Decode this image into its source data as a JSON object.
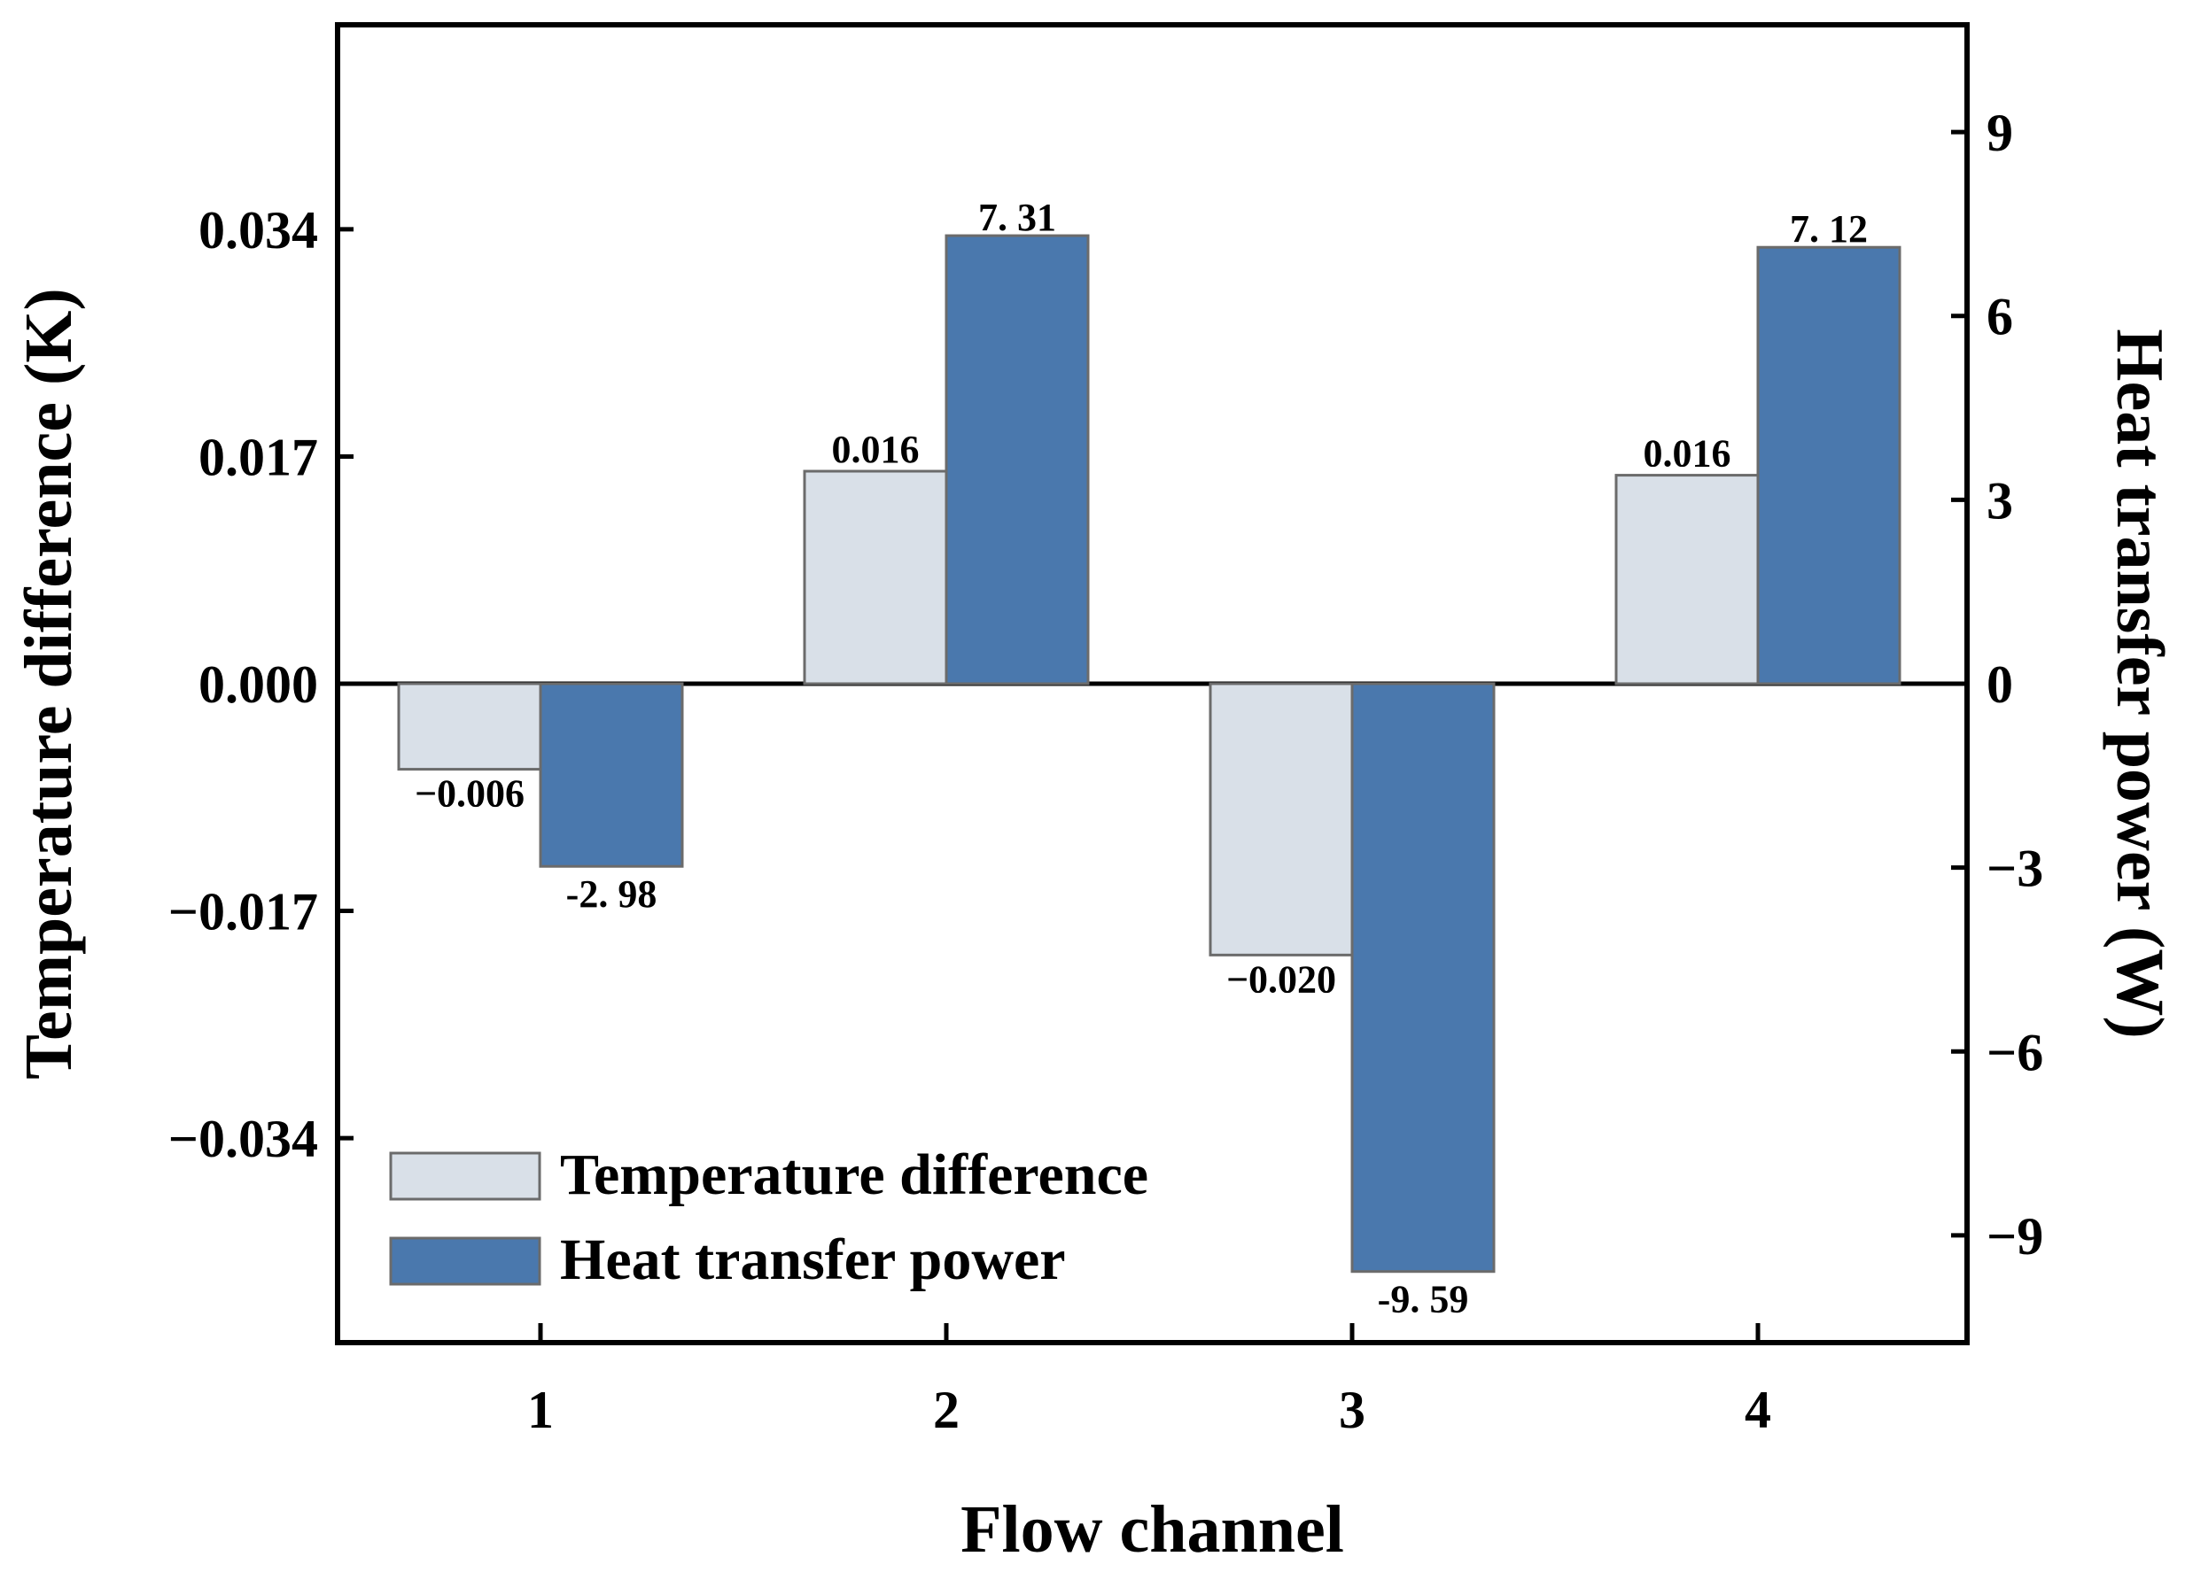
{
  "colors": {
    "temperature": "#d9e0e8",
    "temperature_stroke": "#6b6b6b",
    "power": "#4a78ad",
    "power_stroke": "#6b6b6b",
    "axis": "#000000"
  },
  "chart_data": {
    "type": "bar",
    "title": "",
    "xlabel": "Flow channel",
    "ylabel_left": "Temperature difference (K)",
    "ylabel_right": "Heat transfer power (W)",
    "categories": [
      "1",
      "2",
      "3",
      "4"
    ],
    "ylim_left": [
      -0.0493,
      0.0493
    ],
    "ylim_right": [
      -10.75,
      10.75
    ],
    "yticks_left": [
      {
        "value": 0.034,
        "label": "0.034"
      },
      {
        "value": 0.017,
        "label": "0.017"
      },
      {
        "value": 0.0,
        "label": "0.000"
      },
      {
        "value": -0.017,
        "label": "−0.017"
      },
      {
        "value": -0.034,
        "label": "−0.034"
      }
    ],
    "yticks_right": [
      {
        "value": 9,
        "label": "9"
      },
      {
        "value": 6,
        "label": "6"
      },
      {
        "value": 3,
        "label": "3"
      },
      {
        "value": 0,
        "label": "0"
      },
      {
        "value": -3,
        "label": "−3"
      },
      {
        "value": -6,
        "label": "−6"
      },
      {
        "value": -9,
        "label": "−9"
      }
    ],
    "series": [
      {
        "name": "Temperature difference",
        "axis": "left",
        "values": [
          -0.0064,
          0.0159,
          -0.0203,
          0.0156
        ],
        "labels": [
          "−0.006",
          "0.016",
          "−0.020",
          "0.016"
        ]
      },
      {
        "name": "Heat transfer power",
        "axis": "right",
        "values": [
          -2.98,
          7.31,
          -9.59,
          7.12
        ],
        "labels": [
          "-2. 98",
          "7. 31",
          "-9. 59",
          "7. 12"
        ]
      }
    ],
    "legend": {
      "position": "bottom-left",
      "entries": [
        "Temperature difference",
        "Heat transfer power"
      ]
    }
  }
}
